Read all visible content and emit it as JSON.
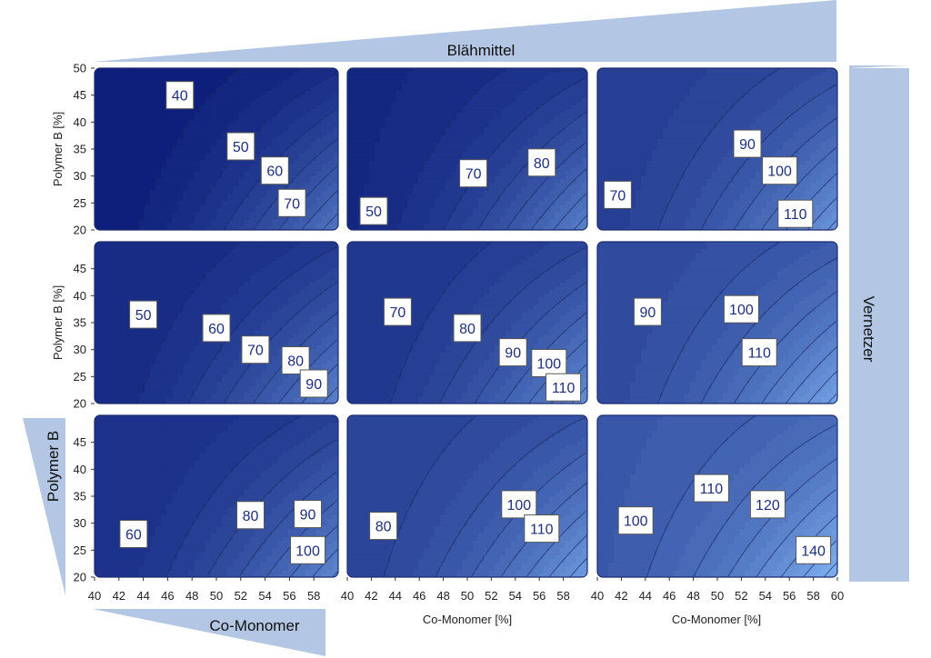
{
  "chart_data": {
    "type": "contour-grid",
    "factor_top": "Blähmittel",
    "factor_right": "Vernetzer",
    "factor_left": "Polymer B",
    "factor_bottom": "Co-Monomer",
    "xlabel": "Co-Monomer [%]",
    "ylabel": "Polymer B [%]",
    "xlim": [
      40,
      60
    ],
    "ylim": [
      20,
      50
    ],
    "x_ticks": [
      40,
      42,
      44,
      46,
      48,
      50,
      52,
      54,
      56,
      58
    ],
    "x_ticks_last": [
      40,
      42,
      44,
      46,
      48,
      50,
      52,
      54,
      56,
      58,
      60
    ],
    "y_ticks_top": [
      20,
      25,
      30,
      35,
      40,
      45,
      50
    ],
    "y_ticks": [
      20,
      25,
      30,
      35,
      40,
      45
    ],
    "colors": {
      "dark": "#071673",
      "light": "#7aabeb",
      "wedge": "#b3c6e4",
      "contour": "#1a2a66"
    },
    "panels": [
      {
        "row": 0,
        "col": 0,
        "base": 35,
        "labels": [
          {
            "value": 40,
            "x": 47,
            "y": 45
          },
          {
            "value": 50,
            "x": 52,
            "y": 35.5
          },
          {
            "value": 60,
            "x": 54.8,
            "y": 31
          },
          {
            "value": 70,
            "x": 56.2,
            "y": 25
          }
        ]
      },
      {
        "row": 0,
        "col": 1,
        "base": 44,
        "labels": [
          {
            "value": 50,
            "x": 42.2,
            "y": 23.5
          },
          {
            "value": 70,
            "x": 50.5,
            "y": 30.5
          },
          {
            "value": 80,
            "x": 56.2,
            "y": 32.5
          }
        ]
      },
      {
        "row": 0,
        "col": 2,
        "base": 62,
        "labels": [
          {
            "value": 70,
            "x": 41.7,
            "y": 26.5
          },
          {
            "value": 90,
            "x": 52.5,
            "y": 36
          },
          {
            "value": 100,
            "x": 55.2,
            "y": 31
          },
          {
            "value": 110,
            "x": 56.5,
            "y": 23
          }
        ]
      },
      {
        "row": 1,
        "col": 0,
        "base": 45,
        "labels": [
          {
            "value": 50,
            "x": 44,
            "y": 36.5
          },
          {
            "value": 60,
            "x": 50,
            "y": 34
          },
          {
            "value": 70,
            "x": 53.2,
            "y": 30
          },
          {
            "value": 80,
            "x": 56.5,
            "y": 28
          },
          {
            "value": 90,
            "x": 58,
            "y": 23.7
          }
        ]
      },
      {
        "row": 1,
        "col": 1,
        "base": 55,
        "labels": [
          {
            "value": 70,
            "x": 44.2,
            "y": 37
          },
          {
            "value": 80,
            "x": 50,
            "y": 34
          },
          {
            "value": 90,
            "x": 53.8,
            "y": 29.5
          },
          {
            "value": 100,
            "x": 56.8,
            "y": 27.5
          },
          {
            "value": 110,
            "x": 58,
            "y": 23
          }
        ]
      },
      {
        "row": 1,
        "col": 2,
        "base": 72,
        "labels": [
          {
            "value": 90,
            "x": 44.2,
            "y": 37
          },
          {
            "value": 100,
            "x": 52,
            "y": 37.5
          },
          {
            "value": 110,
            "x": 53.5,
            "y": 29.5
          }
        ]
      },
      {
        "row": 2,
        "col": 0,
        "base": 50,
        "labels": [
          {
            "value": 60,
            "x": 43.2,
            "y": 28
          },
          {
            "value": 80,
            "x": 52.8,
            "y": 31.5
          },
          {
            "value": 90,
            "x": 57.5,
            "y": 31.7
          },
          {
            "value": 100,
            "x": 57.5,
            "y": 25
          }
        ]
      },
      {
        "row": 2,
        "col": 1,
        "base": 66,
        "labels": [
          {
            "value": 80,
            "x": 43,
            "y": 29.5
          },
          {
            "value": 100,
            "x": 54.3,
            "y": 33.5
          },
          {
            "value": 110,
            "x": 56.2,
            "y": 29
          }
        ]
      },
      {
        "row": 2,
        "col": 2,
        "base": 84,
        "labels": [
          {
            "value": 100,
            "x": 43.2,
            "y": 30.5
          },
          {
            "value": 110,
            "x": 49.5,
            "y": 36.5
          },
          {
            "value": 120,
            "x": 54.2,
            "y": 33.5
          },
          {
            "value": 140,
            "x": 58,
            "y": 25
          }
        ]
      }
    ]
  }
}
